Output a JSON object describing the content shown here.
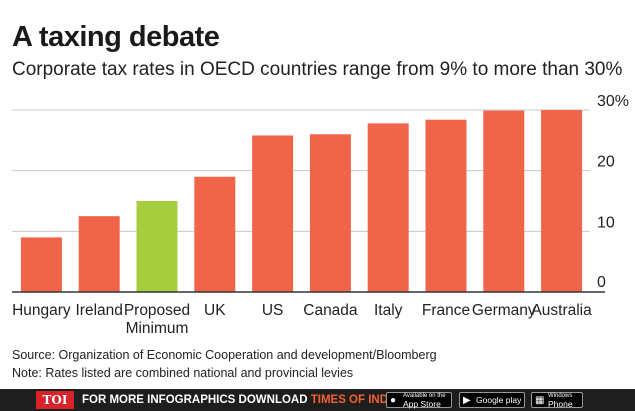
{
  "header": {
    "title": "A taxing debate",
    "subtitle": "Corporate tax rates in OECD countries range from 9% to more than 30%"
  },
  "chart_data": {
    "type": "bar",
    "categories": [
      "Hungary",
      "Ireland",
      "Proposed Minimum",
      "UK",
      "US",
      "Canada",
      "Italy",
      "France",
      "Germany",
      "Australia"
    ],
    "category_lines": [
      [
        "Hungary"
      ],
      [
        "Ireland"
      ],
      [
        "Proposed",
        "Minimum"
      ],
      [
        "UK"
      ],
      [
        "US"
      ],
      [
        "Canada"
      ],
      [
        "Italy"
      ],
      [
        "France"
      ],
      [
        "Germany"
      ],
      [
        "Australia"
      ]
    ],
    "values": [
      9,
      12.5,
      15,
      19,
      25.8,
      26,
      27.8,
      28.4,
      29.9,
      30
    ],
    "highlight_index": 2,
    "ylim": [
      0,
      30
    ],
    "yticks": [
      0,
      10,
      20,
      30
    ],
    "ytick_labels": [
      "0",
      "10",
      "20",
      "30%"
    ],
    "grid": true,
    "colors": {
      "bar": "#f0654a",
      "highlight": "#a6cd3e",
      "grid": "#c8c8c8",
      "axis": "#333333"
    }
  },
  "footnotes": {
    "source": "Source: Organization of Economic Cooperation and development/Bloomberg",
    "note": "Note: Rates listed are combined national and provincial levies"
  },
  "footer": {
    "logo": "TOI",
    "promo_text": "FOR MORE  INFOGRAPHICS DOWNLOAD ",
    "promo_brand": "TIMES OF INDIA APP",
    "stores": [
      {
        "small": "Available on the",
        "label": "App Store",
        "icon": "apple-icon"
      },
      {
        "small": "",
        "label": "Google play",
        "icon": "play-icon"
      },
      {
        "small": "Windows",
        "label": "Phone",
        "icon": "windows-icon"
      }
    ]
  }
}
